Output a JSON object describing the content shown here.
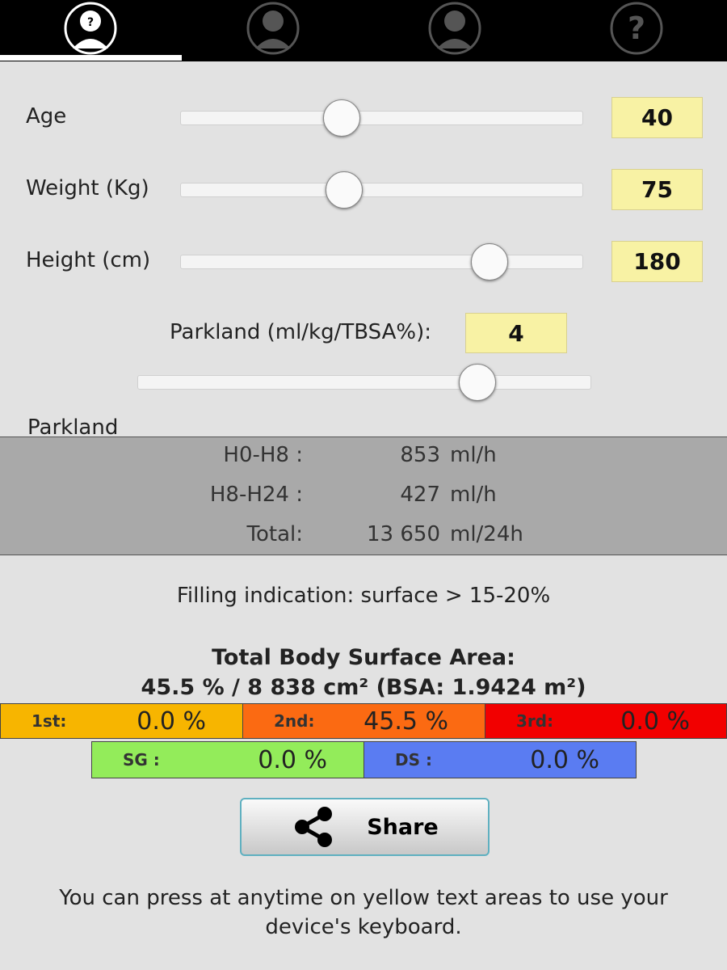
{
  "inputs": [
    {
      "label": "Age",
      "value": "40"
    },
    {
      "label": "Weight (Kg)",
      "value": "75"
    },
    {
      "label": "Height (cm)",
      "value": "180"
    }
  ],
  "parkland": {
    "label": "Parkland (ml/kg/TBSA%):",
    "value": "4",
    "section": "Parkland"
  },
  "infusion": [
    {
      "label": "H0-H8 :",
      "value": "853",
      "unit": "ml/h"
    },
    {
      "label": "H8-H24 :",
      "value": "427",
      "unit": "ml/h"
    },
    {
      "label": "Total:",
      "value": "13 650",
      "unit": "ml/24h"
    }
  ],
  "filling": "Filling indication: surface > 15-20%",
  "tbsa": {
    "title": "Total Body Surface Area:",
    "summary": "45.5 % / 8 838 cm² (BSA: 1.9424 m²)"
  },
  "degrees": [
    {
      "label": "1st:",
      "value": "0.0 %"
    },
    {
      "label": "2nd:",
      "value": "45.5 %"
    },
    {
      "label": "3rd:",
      "value": "0.0 %"
    }
  ],
  "extras": [
    {
      "label": "SG :",
      "value": "0.0 %"
    },
    {
      "label": "DS :",
      "value": "0.0 %"
    }
  ],
  "share": "Share",
  "hint": "You can press at anytime on yellow text areas to use your device's keyboard."
}
